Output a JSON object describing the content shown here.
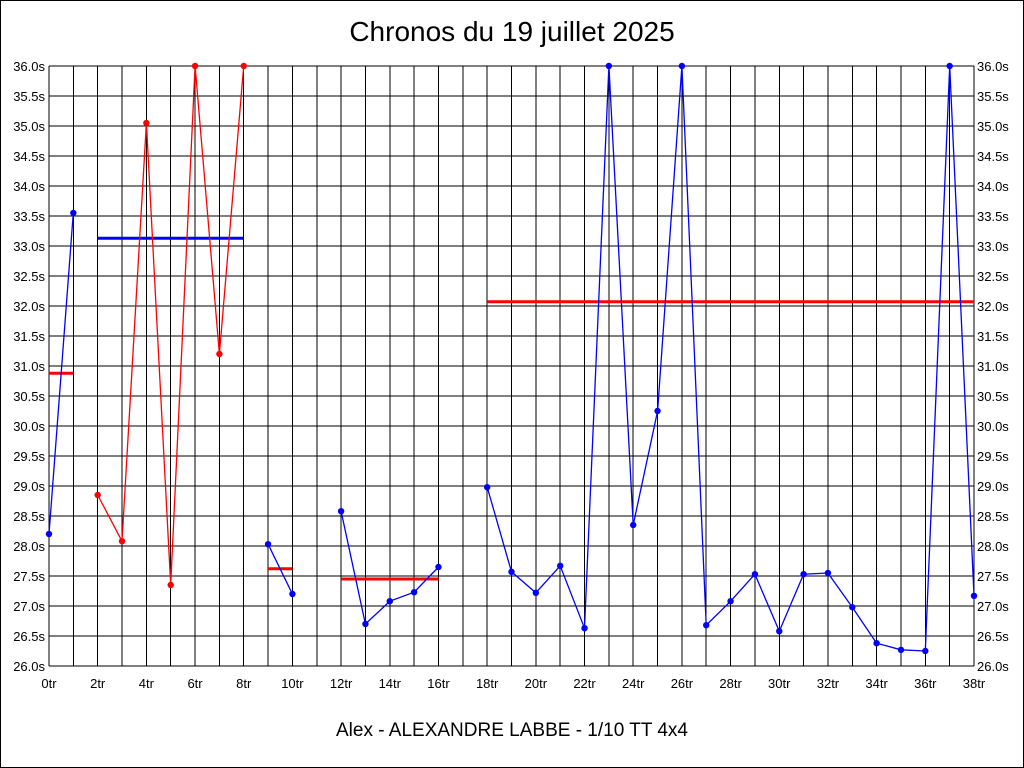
{
  "chart_data": {
    "type": "line",
    "title": "Chronos du 19 juillet 2025",
    "subtitle": "Alex - ALEXANDRE LABBE - 1/10 TT 4x4",
    "xlabel": "",
    "ylabel": "",
    "xlim": [
      0,
      38
    ],
    "ylim": [
      26.0,
      36.0
    ],
    "grid": true,
    "x_ticks": [
      "0tr",
      "2tr",
      "4tr",
      "6tr",
      "8tr",
      "10tr",
      "12tr",
      "14tr",
      "16tr",
      "18tr",
      "20tr",
      "22tr",
      "24tr",
      "26tr",
      "28tr",
      "30tr",
      "32tr",
      "34tr",
      "36tr",
      "38tr"
    ],
    "y_ticks": [
      "26.0s",
      "26.5s",
      "27.0s",
      "27.5s",
      "28.0s",
      "28.5s",
      "29.0s",
      "29.5s",
      "30.0s",
      "30.5s",
      "31.0s",
      "31.5s",
      "32.0s",
      "32.5s",
      "33.0s",
      "33.5s",
      "34.0s",
      "34.5s",
      "35.0s",
      "35.5s",
      "36.0s"
    ],
    "series": [
      {
        "color": "#0000ff",
        "values": [
          [
            0,
            28.2
          ],
          [
            1,
            33.55
          ]
        ]
      },
      {
        "color": "#ff0000",
        "values": [
          [
            2,
            28.85
          ],
          [
            3,
            28.08
          ],
          [
            4,
            35.05
          ],
          [
            5,
            27.35
          ],
          [
            6,
            36.0
          ],
          [
            7,
            31.2
          ],
          [
            8,
            36.0
          ]
        ]
      },
      {
        "color": "#0000ff",
        "values": [
          [
            9,
            28.03
          ],
          [
            10,
            27.2
          ]
        ]
      },
      {
        "color": "#0000ff",
        "values": [
          [
            12,
            28.58
          ],
          [
            13,
            26.7
          ],
          [
            14,
            27.08
          ],
          [
            15,
            27.23
          ],
          [
            16,
            27.65
          ]
        ]
      },
      {
        "color": "#0000ff",
        "values": [
          [
            18,
            28.98
          ],
          [
            19,
            27.57
          ],
          [
            20,
            27.22
          ],
          [
            21,
            27.67
          ],
          [
            22,
            26.63
          ],
          [
            23,
            36.0
          ],
          [
            24,
            28.35
          ],
          [
            25,
            30.25
          ],
          [
            26,
            36.0
          ],
          [
            27,
            26.68
          ],
          [
            28,
            27.08
          ],
          [
            29,
            27.53
          ],
          [
            30,
            26.58
          ],
          [
            31,
            27.53
          ],
          [
            32,
            27.55
          ],
          [
            33,
            26.98
          ],
          [
            34,
            26.38
          ],
          [
            35,
            26.27
          ],
          [
            36,
            26.25
          ],
          [
            37,
            36.0
          ],
          [
            38,
            27.17
          ]
        ]
      }
    ],
    "average_lines": [
      {
        "color": "#ff0000",
        "x": [
          0,
          1
        ],
        "y": 30.88
      },
      {
        "color": "#0000ff",
        "x": [
          2,
          8
        ],
        "y": 33.13
      },
      {
        "color": "#ff0000",
        "x": [
          9,
          10
        ],
        "y": 27.62
      },
      {
        "color": "#ff0000",
        "x": [
          12,
          16
        ],
        "y": 27.45
      },
      {
        "color": "#ff0000",
        "x": [
          18,
          38
        ],
        "y": 32.07
      }
    ]
  }
}
